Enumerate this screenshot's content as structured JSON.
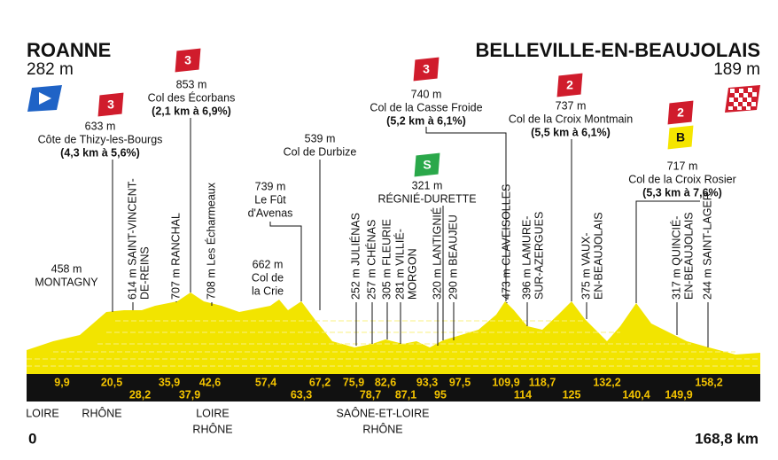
{
  "start": {
    "name": "ROANNE",
    "altitude": "282 m",
    "km": "0"
  },
  "finish": {
    "name": "BELLEVILLE-EN-BEAUJOLAIS",
    "altitude": "189 m",
    "km": "168,8 km"
  },
  "climbs": [
    {
      "category": "3",
      "altitude": "633 m",
      "name": "Côte de Thizy-les-Bourgs",
      "detail": "(4,3 km à 5,6%)"
    },
    {
      "category": "3",
      "altitude": "853 m",
      "name": "Col des Écorbans",
      "detail": "(2,1 km à 6,9%)"
    },
    {
      "category": "3",
      "altitude": "740 m",
      "name": "Col de la Casse Froide",
      "detail": "(5,2 km à 6,1%)"
    },
    {
      "category": "2",
      "altitude": "737 m",
      "name": "Col de la Croix Montmain",
      "detail": "(5,5 km à 6,1%)"
    },
    {
      "category": "2",
      "bonus": "B",
      "altitude": "717 m",
      "name": "Col de la Croix Rosier",
      "detail": "(5,3 km à 7,6%)"
    }
  ],
  "sprint": {
    "label": "S",
    "altitude": "321 m",
    "name": "RÉGNIÉ-DURETTE"
  },
  "points": [
    {
      "lines": [
        "458 m",
        "MONTAGNY"
      ]
    },
    {
      "lines": [
        "739 m",
        "Le Fût",
        "d'Avenas"
      ]
    },
    {
      "lines": [
        "662 m",
        "Col de",
        "la Crie"
      ]
    },
    {
      "lines": [
        "539 m",
        "Col de Durbize"
      ]
    }
  ],
  "towns": [
    {
      "lines": [
        "614 m SAINT-VINCENT-",
        "DE-REINS"
      ]
    },
    {
      "lines": [
        "707 m RANCHAL"
      ]
    },
    {
      "lines": [
        "708 m Les Écharmeaux"
      ]
    },
    {
      "lines": [
        "252 m JULIÉNAS"
      ]
    },
    {
      "lines": [
        "257 m CHÉNAS"
      ]
    },
    {
      "lines": [
        "305 m FLEURIE"
      ]
    },
    {
      "lines": [
        "281 m VILLIÉ-",
        "MORGON"
      ]
    },
    {
      "lines": [
        "320 m LANTIGNIÉ"
      ]
    },
    {
      "lines": [
        "290 m BEAUJEU"
      ]
    },
    {
      "lines": [
        "473 m CLAVEISOLLES"
      ]
    },
    {
      "lines": [
        "396 m LAMURE-",
        "SUR-AZERGUES"
      ]
    },
    {
      "lines": [
        "375 m VAUX-",
        "EN-BEAUJOLAIS"
      ]
    },
    {
      "lines": [
        "317 m QUINCIÉ-",
        "EN-BEAUJOLAIS"
      ]
    },
    {
      "lines": [
        "244 m SAINT-LAGER"
      ]
    }
  ],
  "km_upper": [
    "9,9",
    "20,5",
    "35,9",
    "42,6",
    "57,4",
    "67,2",
    "75,9",
    "82,6",
    "93,3",
    "97,5",
    "109,9",
    "118,7",
    "132,2",
    "158,2"
  ],
  "km_lower": [
    "28,2",
    "37,9",
    "63,3",
    "78,7",
    "87,1",
    "95",
    "114",
    "125",
    "140,4",
    "149,9"
  ],
  "regions": [
    {
      "lines": [
        "LOIRE"
      ]
    },
    {
      "lines": [
        "RHÔNE"
      ]
    },
    {
      "lines": [
        "LOIRE",
        "RHÔNE"
      ]
    },
    {
      "lines": [
        "SAÔNE-ET-LOIRE",
        "RHÔNE"
      ]
    }
  ]
}
